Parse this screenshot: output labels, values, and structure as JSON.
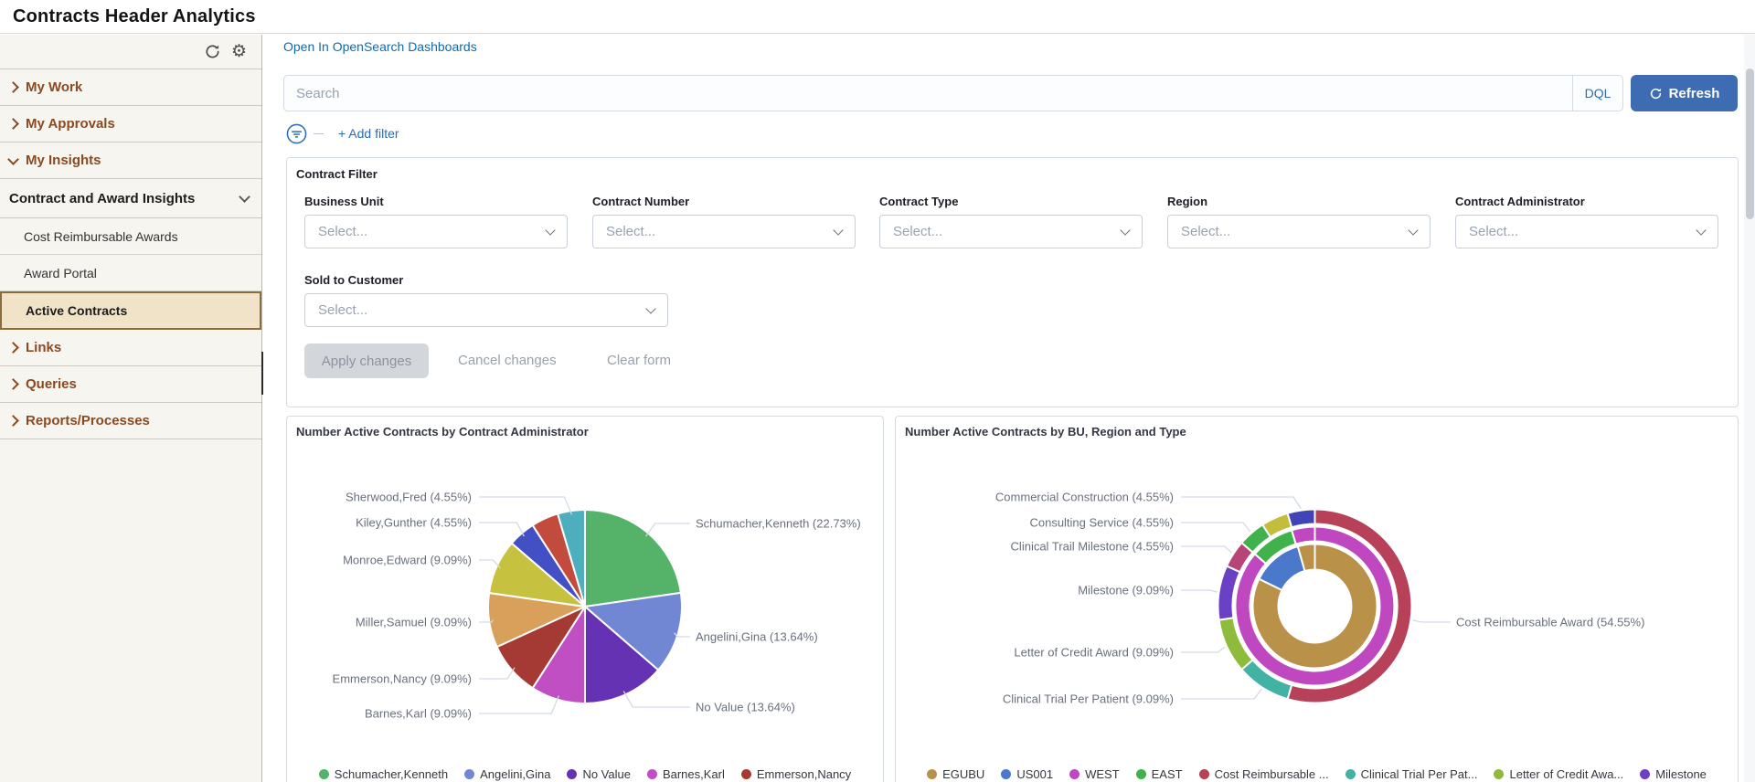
{
  "header": {
    "title": "Contracts Header Analytics"
  },
  "sidebar": {
    "sections_top": [
      {
        "label": "My Work",
        "expanded": false
      },
      {
        "label": "My Approvals",
        "expanded": false
      },
      {
        "label": "My Insights",
        "expanded": true
      }
    ],
    "group_header": {
      "label": "Contract and Award Insights"
    },
    "group_items": [
      {
        "label": "Cost Reimbursable Awards",
        "active": false
      },
      {
        "label": "Award Portal",
        "active": false
      },
      {
        "label": "Active Contracts",
        "active": true
      }
    ],
    "sections_bottom": [
      {
        "label": "Links"
      },
      {
        "label": "Queries"
      },
      {
        "label": "Reports/Processes"
      }
    ],
    "icons": [
      "refresh-icon",
      "gear-icon"
    ]
  },
  "main": {
    "open_link": "Open In OpenSearch Dashboards",
    "search": {
      "placeholder": "Search",
      "mode_label": "DQL",
      "refresh_label": "Refresh"
    },
    "add_filter_label": "+ Add filter",
    "filter_panel": {
      "title": "Contract Filter",
      "fields_row1": [
        {
          "label": "Business Unit",
          "value": "Select..."
        },
        {
          "label": "Contract Number",
          "value": "Select..."
        },
        {
          "label": "Contract Type",
          "value": "Select..."
        },
        {
          "label": "Region",
          "value": "Select..."
        },
        {
          "label": "Contract Administrator",
          "value": "Select..."
        }
      ],
      "fields_row2": [
        {
          "label": "Sold to Customer",
          "value": "Select..."
        }
      ],
      "buttons": {
        "apply": "Apply changes",
        "cancel": "Cancel changes",
        "clear": "Clear form"
      }
    }
  },
  "colors": {
    "accent_blue": "#2a6cb3",
    "refresh_button": "#3d6cb2",
    "sidebar_brown": "#8a4a21",
    "active_item_bg": "#f1e3c7",
    "active_item_border": "#8c6c3c",
    "panel_border": "#d3dae6",
    "label_gray": "#69707d"
  },
  "chart_data": [
    {
      "type": "pie",
      "title": "Number Active Contracts by Contract Administrator",
      "slices": [
        {
          "label": "Schumacher,Kenneth",
          "pct": "22.73",
          "color": "#54b368"
        },
        {
          "label": "Angelini,Gina",
          "pct": "13.64",
          "color": "#7187d4"
        },
        {
          "label": "No Value",
          "pct": "13.64",
          "color": "#6532b4"
        },
        {
          "label": "Barnes,Karl",
          "pct": "9.09",
          "color": "#bf4fc3"
        },
        {
          "label": "Emmerson,Nancy",
          "pct": "9.09",
          "color": "#a43a33"
        },
        {
          "label": "Miller,Samuel",
          "pct": "9.09",
          "color": "#d9a05c"
        },
        {
          "label": "Monroe,Edward",
          "pct": "9.09",
          "color": "#c6c13f"
        },
        {
          "label": "Kiley,Gunther",
          "pct": "4.55",
          "color": "#4350c5"
        },
        {
          "label": null,
          "pct": "4.55",
          "color": "#c34b3d"
        },
        {
          "label": "Sherwood,Fred",
          "pct": "4.55",
          "color": "#4daebe"
        }
      ],
      "legend": [
        {
          "label": "Schumacher,Kenneth",
          "color": "#54b368"
        },
        {
          "label": "Angelini,Gina",
          "color": "#7187d4"
        },
        {
          "label": "No Value",
          "color": "#6532b4"
        },
        {
          "label": "Barnes,Karl",
          "color": "#bf4fc3"
        },
        {
          "label": "Emmerson,Nancy",
          "color": "#a43a33"
        }
      ]
    },
    {
      "type": "sunburst",
      "title": "Number Active Contracts by BU, Region and Type",
      "rings": [
        {
          "name": "business-unit",
          "segments": [
            {
              "label": "EGUBU",
              "color": "#ba9148",
              "start": 0,
              "end": 296
            },
            {
              "label": "US001",
              "color": "#4a79cb",
              "start": 296,
              "end": 344
            },
            {
              "label": "EGUBU",
              "color": "#ba9148",
              "start": 344,
              "end": 360
            }
          ]
        },
        {
          "name": "region",
          "segments": [
            {
              "label": "WEST",
              "color": "#bf48c1",
              "start": 0,
              "end": 311
            },
            {
              "label": "EAST",
              "color": "#40b24c",
              "start": 311,
              "end": 343
            },
            {
              "label": "WEST",
              "color": "#bf48c1",
              "start": 343,
              "end": 360
            }
          ]
        },
        {
          "name": "contract-type",
          "segments": [
            {
              "label": "Cost Reimbursable Award",
              "color": "#b74159",
              "start": 0,
              "end": 196.4
            },
            {
              "label": "Clinical Trial Per Patient",
              "color": "#41b2a4",
              "start": 196.4,
              "end": 229.1
            },
            {
              "label": "Letter of Credit Award",
              "color": "#8fbb3d",
              "start": 229.1,
              "end": 261.8
            },
            {
              "label": "Milestone",
              "color": "#6a40c4",
              "start": 261.8,
              "end": 294.5
            },
            {
              "label": "Clinical Trail Milestone",
              "color": "#b84577",
              "start": 294.5,
              "end": 310.9
            },
            {
              "label": "Consulting Service",
              "color": "#40b24c",
              "start": 310.9,
              "end": 327.3
            },
            {
              "label": null,
              "color": "#c3bd3e",
              "start": 327.3,
              "end": 343.6
            },
            {
              "label": "Commercial Construction",
              "color": "#4045b5",
              "start": 343.6,
              "end": 360
            }
          ]
        }
      ],
      "labels": [
        {
          "text": "Commercial Construction",
          "pct": "4.55"
        },
        {
          "text": "Consulting Service",
          "pct": "4.55"
        },
        {
          "text": "Clinical Trail Milestone",
          "pct": "4.55"
        },
        {
          "text": "Milestone",
          "pct": "9.09"
        },
        {
          "text": "Letter of Credit Award",
          "pct": "9.09"
        },
        {
          "text": "Clinical Trial Per Patient",
          "pct": "9.09"
        },
        {
          "text": "Cost Reimbursable Award",
          "pct": "54.55"
        }
      ],
      "legend": [
        {
          "label": "EGUBU",
          "color": "#ba9148"
        },
        {
          "label": "US001",
          "color": "#4a79cb"
        },
        {
          "label": "WEST",
          "color": "#bf48c1"
        },
        {
          "label": "EAST",
          "color": "#40b24c"
        },
        {
          "label": "Cost Reimbursable ...",
          "color": "#b74159"
        },
        {
          "label": "Clinical Trial Per Pat...",
          "color": "#41b2a4"
        },
        {
          "label": "Letter of Credit Awa...",
          "color": "#8fbb3d"
        },
        {
          "label": "Milestone",
          "color": "#6a40c4"
        }
      ]
    }
  ]
}
